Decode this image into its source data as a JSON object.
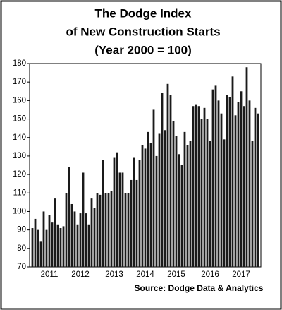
{
  "chart_data": {
    "type": "bar",
    "title": "The Dodge Index",
    "subtitle": "of New Construction Starts",
    "subtitle2": "(Year 2000 = 100)",
    "source": "Source:  Dodge Data & Analytics",
    "color": "#1a1a1a",
    "ylim": [
      70,
      180
    ],
    "yticks": [
      70,
      80,
      90,
      100,
      110,
      120,
      130,
      140,
      150,
      160,
      170,
      180
    ],
    "categories": [
      null,
      null,
      null,
      null,
      null,
      null,
      "2011",
      null,
      null,
      null,
      null,
      null,
      null,
      null,
      null,
      null,
      null,
      "2012",
      null,
      null,
      null,
      null,
      null,
      null,
      null,
      null,
      null,
      null,
      null,
      "2013",
      null,
      null,
      null,
      null,
      null,
      null,
      null,
      null,
      null,
      null,
      "2014",
      null,
      null,
      null,
      null,
      null,
      null,
      null,
      null,
      null,
      null,
      "2015",
      null,
      null,
      null,
      null,
      null,
      null,
      null,
      null,
      null,
      null,
      null,
      "2016",
      null,
      null,
      null,
      null,
      null,
      null,
      null,
      null,
      null,
      null,
      "2017",
      null,
      null,
      null,
      null,
      null,
      null
    ],
    "values": [
      91,
      96,
      90,
      84,
      100,
      90,
      98,
      94,
      107,
      93,
      91,
      92,
      110,
      124,
      104,
      100,
      93,
      99,
      121,
      99,
      93,
      107,
      102,
      110,
      109,
      128,
      110,
      110,
      111,
      129,
      132,
      121,
      121,
      110,
      110,
      117,
      129,
      117,
      128,
      136,
      134,
      143,
      137,
      155,
      130,
      142,
      164,
      144,
      169,
      163,
      149,
      141,
      131,
      125,
      143,
      136,
      138,
      157,
      158,
      157,
      150,
      156,
      150,
      138,
      166,
      168,
      160,
      153,
      139,
      163,
      162,
      173,
      152,
      159,
      165,
      157,
      178,
      160,
      138,
      156,
      153
    ]
  }
}
